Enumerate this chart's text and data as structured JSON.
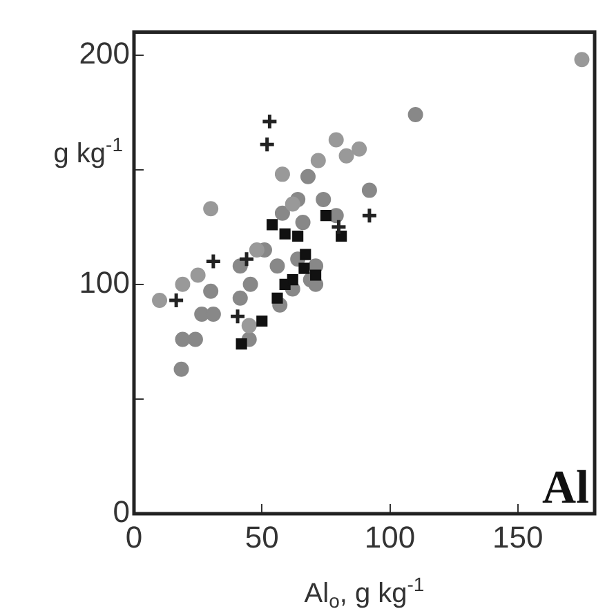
{
  "chart_data": {
    "type": "scatter",
    "xlabel": "Al$_{o}$, g kg$^{-1}$",
    "ylabel": "g kg$^{-1}$",
    "annotations": [
      "Al"
    ],
    "xlim": [
      0,
      180
    ],
    "xticks": [
      0,
      50,
      100,
      150
    ],
    "ylim": [
      0,
      210
    ],
    "yticks": [
      0,
      {
        "value": 50,
        "label": null
      },
      100,
      {
        "value": 150,
        "label": null
      },
      200
    ],
    "grid": false,
    "legend": false,
    "series": [
      {
        "color": "#888888",
        "marker": "circle",
        "x": [
          110,
          92,
          68,
          18.5,
          19,
          24,
          30,
          26.5,
          31,
          45,
          41.5,
          41.5,
          45.5,
          57,
          64,
          74,
          79,
          58,
          51,
          56,
          64,
          71,
          69,
          62,
          66,
          71
        ],
        "values": [
          174,
          141,
          147,
          63,
          76,
          76,
          97,
          87,
          87,
          76,
          94,
          108,
          100,
          91,
          137,
          137,
          130,
          131,
          115,
          108,
          111,
          108,
          102,
          98,
          127,
          100
        ]
      },
      {
        "color": "#999999",
        "marker": "circle",
        "x": [
          175,
          30,
          79,
          88,
          58,
          10,
          19,
          25,
          72,
          83,
          48,
          62,
          45
        ],
        "values": [
          198,
          133,
          163,
          159,
          148,
          93,
          100,
          104,
          154,
          156,
          115,
          135,
          82
        ]
      },
      {
        "color": "#111111",
        "marker": "square",
        "x": [
          54,
          59,
          64,
          75,
          81,
          67,
          71,
          59,
          56,
          50,
          42,
          66.5,
          62
        ],
        "values": [
          126,
          122,
          121,
          130,
          121,
          113,
          104,
          100,
          94,
          84,
          74,
          107,
          102
        ]
      },
      {
        "color": "#222222",
        "marker": "cross",
        "x": [
          53,
          52,
          92,
          31,
          16.5,
          44,
          40.5,
          80
        ],
        "values": [
          171,
          161,
          130,
          110,
          93,
          111,
          86,
          125
        ]
      }
    ]
  }
}
